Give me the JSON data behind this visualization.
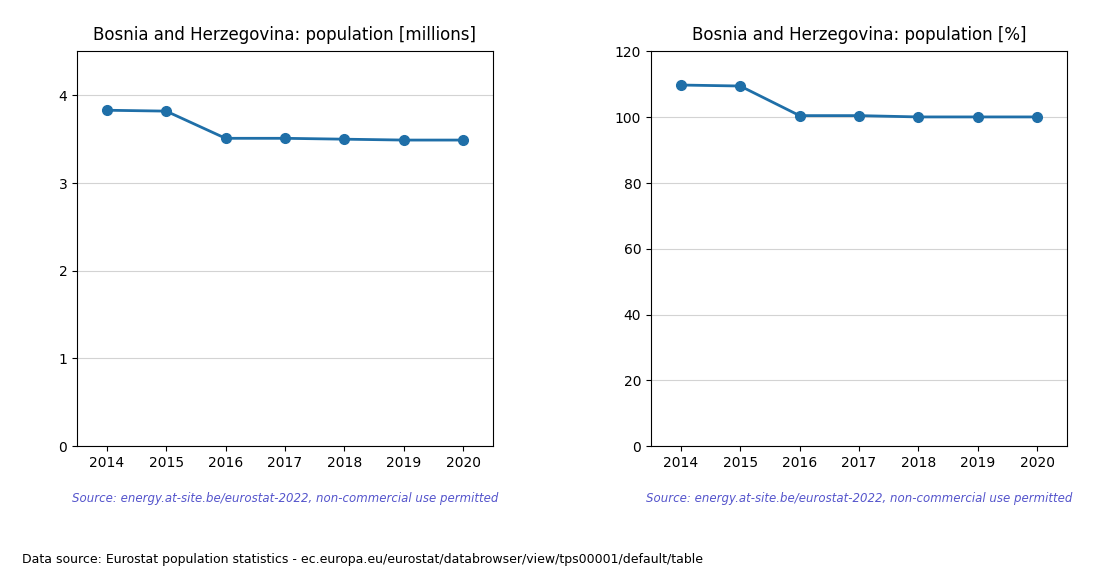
{
  "years": [
    2014,
    2015,
    2016,
    2017,
    2018,
    2019,
    2020
  ],
  "pop_millions": [
    3.83,
    3.82,
    3.51,
    3.51,
    3.5,
    3.49,
    3.49
  ],
  "pop_percent": [
    109.8,
    109.5,
    100.5,
    100.5,
    100.1,
    100.1,
    100.1
  ],
  "title_millions": "Bosnia and Herzegovina: population [millions]",
  "title_percent": "Bosnia and Herzegovina: population [%]",
  "source_text": "Source: energy.at-site.be/eurostat-2022, non-commercial use permitted",
  "footer_text": "Data source: Eurostat population statistics - ec.europa.eu/eurostat/databrowser/view/tps00001/default/table",
  "line_color": "#1f6fa8",
  "source_color": "#5555cc",
  "ylim_millions": [
    0,
    4.5
  ],
  "ylim_percent": [
    0,
    120
  ],
  "yticks_millions": [
    0,
    1,
    2,
    3,
    4
  ],
  "yticks_percent": [
    0,
    20,
    40,
    60,
    80,
    100,
    120
  ],
  "bg_color": "#ffffff"
}
